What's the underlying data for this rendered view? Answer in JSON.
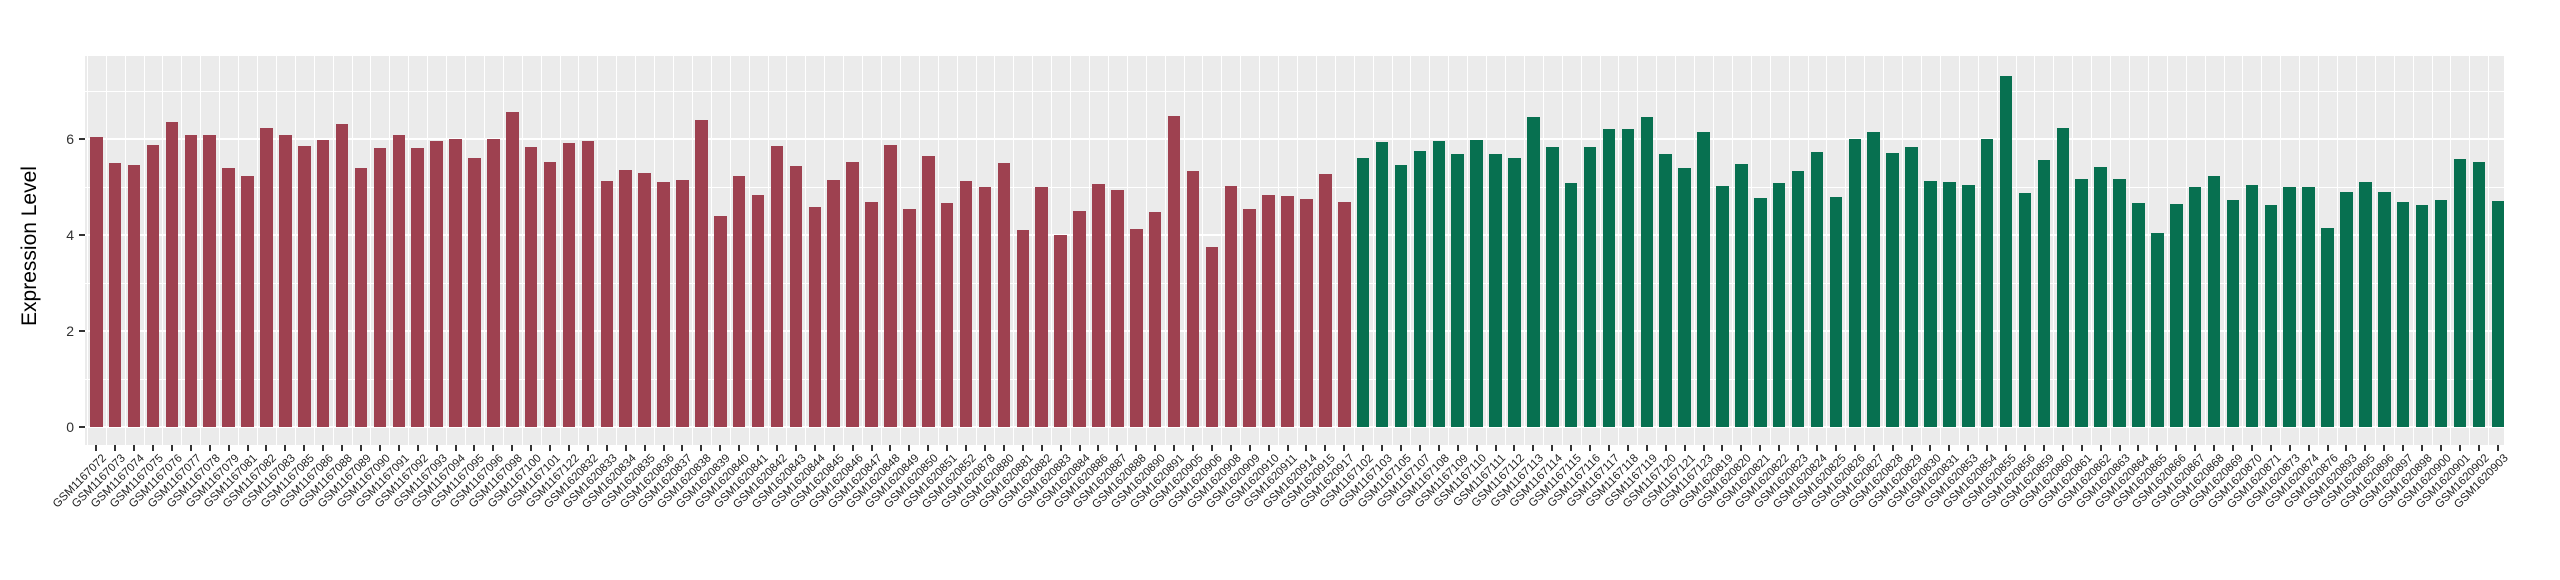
{
  "figure": {
    "plot_background": "#EBEBEB",
    "grid_color": "#FFFFFF",
    "tick_color": "#333333",
    "axis_text_color": "#1f1f1f"
  },
  "chart_data": {
    "type": "bar",
    "title": "",
    "xlabel": "",
    "ylabel": "Expression Level",
    "ylim": [
      0,
      7.75
    ],
    "yticks": [
      0,
      2,
      4,
      6
    ],
    "yticks_minor": [
      1,
      3,
      5,
      7
    ],
    "grid": true,
    "legend_position": "none",
    "series": [
      {
        "name": "red-group",
        "color": "#9E4150",
        "categories": [
          "GSM1167072",
          "GSM1167073",
          "GSM1167074",
          "GSM1167075",
          "GSM1167076",
          "GSM1167077",
          "GSM1167078",
          "GSM1167079",
          "GSM1167081",
          "GSM1167082",
          "GSM1167083",
          "GSM1167085",
          "GSM1167086",
          "GSM1167088",
          "GSM1167089",
          "GSM1167090",
          "GSM1167091",
          "GSM1167092",
          "GSM1167093",
          "GSM1167094",
          "GSM1167095",
          "GSM1167096",
          "GSM1167098",
          "GSM1167100",
          "GSM1167101",
          "GSM1167122",
          "GSM1620832",
          "GSM1620833",
          "GSM1620834",
          "GSM1620835",
          "GSM1620836",
          "GSM1620837",
          "GSM1620838",
          "GSM1620839",
          "GSM1620840",
          "GSM1620841",
          "GSM1620842",
          "GSM1620843",
          "GSM1620844",
          "GSM1620845",
          "GSM1620846",
          "GSM1620847",
          "GSM1620848",
          "GSM1620849",
          "GSM1620850",
          "GSM1620851",
          "GSM1620852",
          "GSM1620878",
          "GSM1620880",
          "GSM1620881",
          "GSM1620882",
          "GSM1620883",
          "GSM1620884",
          "GSM1620886",
          "GSM1620887",
          "GSM1620888",
          "GSM1620890",
          "GSM1620891",
          "GSM1620905",
          "GSM1620906",
          "GSM1620908",
          "GSM1620909",
          "GSM1620910",
          "GSM1620911",
          "GSM1620914",
          "GSM1620915",
          "GSM1620917"
        ],
        "values": [
          6.05,
          5.49,
          5.46,
          5.88,
          6.35,
          6.08,
          6.08,
          5.4,
          5.22,
          6.22,
          6.08,
          5.85,
          5.97,
          6.32,
          5.39,
          5.82,
          6.09,
          5.81,
          5.95,
          6.01,
          5.61,
          5.99,
          6.56,
          5.83,
          5.52,
          5.91,
          5.95,
          5.13,
          5.36,
          5.29,
          5.1,
          5.15,
          6.4,
          4.39,
          5.22,
          4.83,
          5.86,
          5.43,
          4.59,
          5.15,
          5.53,
          4.69,
          5.88,
          4.55,
          5.65,
          4.66,
          5.13,
          4.99,
          5.51,
          4.1,
          5.01,
          4.0,
          4.49,
          5.06,
          4.94,
          4.12,
          4.48,
          6.47,
          5.33,
          3.75,
          5.03,
          4.55,
          4.84,
          4.81,
          4.75,
          5.28,
          4.69
        ]
      },
      {
        "name": "green-group",
        "color": "#077050",
        "categories": [
          "GSM1167102",
          "GSM1167103",
          "GSM1167105",
          "GSM1167107",
          "GSM1167108",
          "GSM1167109",
          "GSM1167110",
          "GSM1167111",
          "GSM1167112",
          "GSM1167113",
          "GSM1167114",
          "GSM1167115",
          "GSM1167116",
          "GSM1167117",
          "GSM1167118",
          "GSM1167119",
          "GSM1167120",
          "GSM1167121",
          "GSM1167123",
          "GSM1620819",
          "GSM1620820",
          "GSM1620821",
          "GSM1620822",
          "GSM1620823",
          "GSM1620824",
          "GSM1620825",
          "GSM1620826",
          "GSM1620827",
          "GSM1620828",
          "GSM1620829",
          "GSM1620830",
          "GSM1620831",
          "GSM1620853",
          "GSM1620854",
          "GSM1620855",
          "GSM1620856",
          "GSM1620859",
          "GSM1620860",
          "GSM1620861",
          "GSM1620862",
          "GSM1620863",
          "GSM1620864",
          "GSM1620865",
          "GSM1620866",
          "GSM1620867",
          "GSM1620868",
          "GSM1620869",
          "GSM1620870",
          "GSM1620871",
          "GSM1620873",
          "GSM1620874",
          "GSM1620876",
          "GSM1620893",
          "GSM1620895",
          "GSM1620896",
          "GSM1620897",
          "GSM1620898",
          "GSM1620900",
          "GSM1620901",
          "GSM1620902",
          "GSM1620903"
        ],
        "values": [
          5.6,
          5.94,
          5.46,
          5.76,
          5.95,
          5.68,
          5.97,
          5.69,
          5.61,
          6.45,
          5.83,
          5.08,
          5.84,
          6.2,
          6.21,
          6.45,
          5.69,
          5.4,
          6.14,
          5.02,
          5.48,
          4.77,
          5.09,
          5.34,
          5.73,
          4.79,
          6.0,
          6.14,
          5.7,
          5.84,
          5.12,
          5.1,
          5.05,
          5.99,
          7.31,
          4.88,
          5.56,
          6.22,
          5.16,
          5.41,
          5.16,
          4.67,
          4.05,
          4.65,
          5.01,
          5.22,
          4.72,
          5.05,
          4.63,
          4.99,
          4.99,
          4.14,
          4.89,
          5.1,
          4.9,
          4.69,
          4.62,
          4.72,
          5.59,
          5.52,
          4.71
        ]
      }
    ]
  }
}
